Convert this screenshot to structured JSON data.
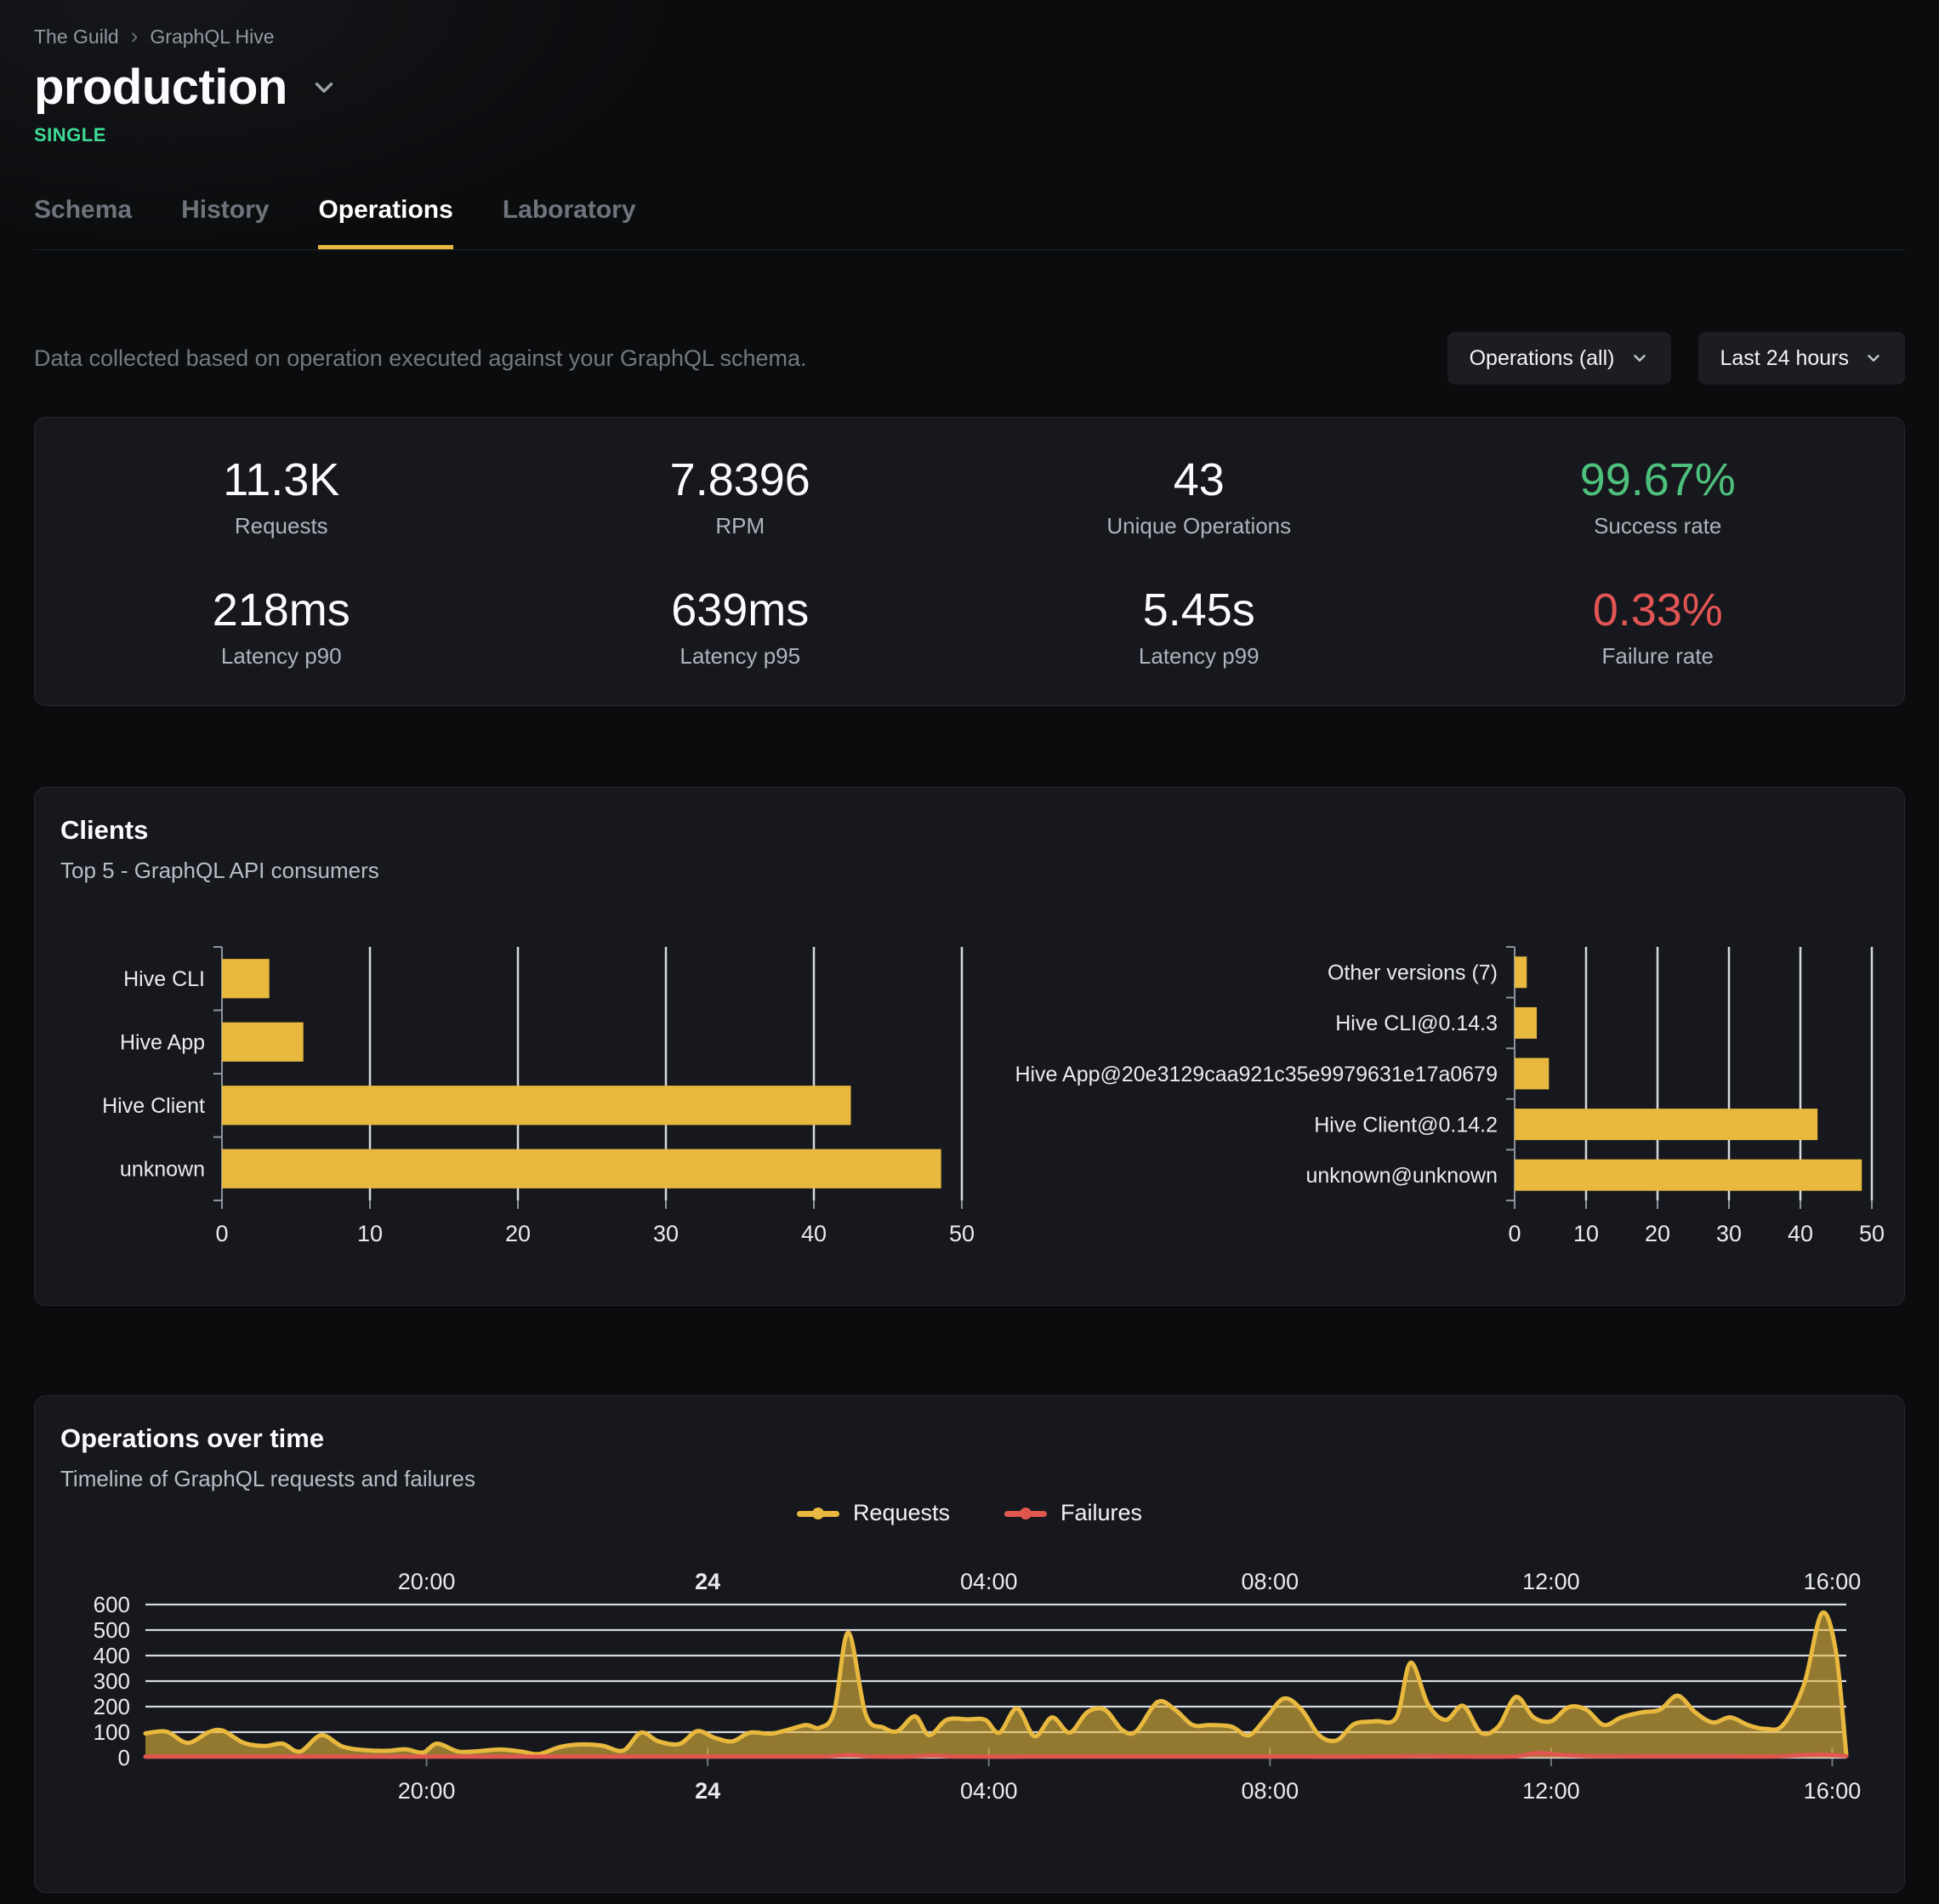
{
  "colors": {
    "accent_yellow": "#e8b93e",
    "success_green": "#4fc07c",
    "failure_red": "#e25555",
    "badge_green": "#3ddc97",
    "series_requests": "#e8b93e",
    "series_failures": "#e0574f"
  },
  "header": {
    "breadcrumb": {
      "items": [
        "The Guild",
        "GraphQL Hive"
      ],
      "separator": "›"
    },
    "title": "production",
    "badge": "SINGLE",
    "tabs": [
      {
        "label": "Schema"
      },
      {
        "label": "History"
      },
      {
        "label": "Operations"
      },
      {
        "label": "Laboratory"
      }
    ],
    "active_tab": "Operations"
  },
  "toolbar": {
    "description": "Data collected based on operation executed against your GraphQL schema.",
    "operations_filter": "Operations (all)",
    "period_filter": "Last 24 hours"
  },
  "stats": {
    "items": [
      {
        "value": "11.3K",
        "label": "Requests"
      },
      {
        "value": "7.8396",
        "label": "RPM"
      },
      {
        "value": "43",
        "label": "Unique Operations"
      },
      {
        "value": "99.67%",
        "label": "Success rate"
      },
      {
        "value": "218ms",
        "label": "Latency p90"
      },
      {
        "value": "639ms",
        "label": "Latency p95"
      },
      {
        "value": "5.45s",
        "label": "Latency p99"
      },
      {
        "value": "0.33%",
        "label": "Failure rate"
      }
    ]
  },
  "clients": {
    "title": "Clients",
    "subtitle": "Top 5 - GraphQL API consumers"
  },
  "operations_over_time": {
    "title": "Operations over time",
    "subtitle": "Timeline of GraphQL requests and failures"
  },
  "chart_data": [
    {
      "type": "bar",
      "orientation": "horizontal",
      "categories": [
        "Hive CLI",
        "Hive App",
        "Hive Client",
        "unknown"
      ],
      "values": [
        3.2,
        5.5,
        42.5,
        48.6
      ],
      "xlim": [
        0,
        50
      ],
      "xticks": [
        0,
        10,
        20,
        30,
        40,
        50
      ],
      "grid": true
    },
    {
      "type": "bar",
      "orientation": "horizontal",
      "categories": [
        "Other versions (7)",
        "Hive CLI@0.14.3",
        "Hive App@20e3129caa921c35e9979631e17a0679",
        "Hive Client@0.14.2",
        "unknown@unknown"
      ],
      "values": [
        1.7,
        3.1,
        4.8,
        42.4,
        48.6
      ],
      "xlim": [
        0,
        50
      ],
      "xticks": [
        0,
        10,
        20,
        30,
        40,
        50
      ],
      "grid": true
    },
    {
      "type": "area",
      "title": "Operations over time",
      "x_start_label": "16:00",
      "xmax": 24.2,
      "ylim": [
        0,
        600
      ],
      "yticks": [
        0,
        100,
        200,
        300,
        400,
        500,
        600
      ],
      "xticks": [
        {
          "pos": 4,
          "label": "20:00"
        },
        {
          "pos": 8,
          "label": "24",
          "bold": true
        },
        {
          "pos": 12,
          "label": "04:00"
        },
        {
          "pos": 16,
          "label": "08:00"
        },
        {
          "pos": 20,
          "label": "12:00"
        },
        {
          "pos": 24,
          "label": "16:00"
        }
      ],
      "grid": true,
      "legend_position": "top-center",
      "series": [
        {
          "name": "Requests",
          "color": "#e8b93e",
          "points": [
            [
              0,
              95
            ],
            [
              0.3,
              102
            ],
            [
              0.6,
              58
            ],
            [
              0.9,
              100
            ],
            [
              1.1,
              106
            ],
            [
              1.4,
              58
            ],
            [
              1.7,
              46
            ],
            [
              1.95,
              55
            ],
            [
              2.2,
              24
            ],
            [
              2.5,
              88
            ],
            [
              2.8,
              44
            ],
            [
              3.1,
              30
            ],
            [
              3.45,
              27
            ],
            [
              3.7,
              33
            ],
            [
              3.95,
              20
            ],
            [
              4.15,
              55
            ],
            [
              4.45,
              24
            ],
            [
              4.75,
              26
            ],
            [
              5.05,
              32
            ],
            [
              5.35,
              24
            ],
            [
              5.6,
              14
            ],
            [
              5.9,
              42
            ],
            [
              6.2,
              52
            ],
            [
              6.5,
              47
            ],
            [
              6.8,
              28
            ],
            [
              7.05,
              98
            ],
            [
              7.3,
              64
            ],
            [
              7.6,
              54
            ],
            [
              7.85,
              104
            ],
            [
              8.1,
              78
            ],
            [
              8.35,
              64
            ],
            [
              8.6,
              98
            ],
            [
              8.9,
              94
            ],
            [
              9.15,
              110
            ],
            [
              9.4,
              128
            ],
            [
              9.6,
              118
            ],
            [
              9.8,
              182
            ],
            [
              10,
              490
            ],
            [
              10.25,
              168
            ],
            [
              10.5,
              118
            ],
            [
              10.7,
              104
            ],
            [
              10.95,
              162
            ],
            [
              11.15,
              88
            ],
            [
              11.4,
              148
            ],
            [
              11.7,
              150
            ],
            [
              11.95,
              148
            ],
            [
              12.15,
              98
            ],
            [
              12.4,
              193
            ],
            [
              12.65,
              84
            ],
            [
              12.9,
              158
            ],
            [
              13.15,
              98
            ],
            [
              13.4,
              178
            ],
            [
              13.65,
              188
            ],
            [
              13.9,
              108
            ],
            [
              14.1,
              104
            ],
            [
              14.4,
              218
            ],
            [
              14.65,
              188
            ],
            [
              14.9,
              128
            ],
            [
              15.15,
              128
            ],
            [
              15.45,
              122
            ],
            [
              15.7,
              88
            ],
            [
              15.95,
              158
            ],
            [
              16.2,
              232
            ],
            [
              16.45,
              188
            ],
            [
              16.7,
              88
            ],
            [
              16.95,
              68
            ],
            [
              17.2,
              132
            ],
            [
              17.5,
              143
            ],
            [
              17.8,
              158
            ],
            [
              18,
              372
            ],
            [
              18.25,
              208
            ],
            [
              18.5,
              148
            ],
            [
              18.75,
              203
            ],
            [
              19,
              98
            ],
            [
              19.25,
              122
            ],
            [
              19.5,
              238
            ],
            [
              19.75,
              158
            ],
            [
              20,
              143
            ],
            [
              20.25,
              198
            ],
            [
              20.5,
              188
            ],
            [
              20.75,
              128
            ],
            [
              21,
              158
            ],
            [
              21.3,
              178
            ],
            [
              21.55,
              188
            ],
            [
              21.8,
              243
            ],
            [
              22.05,
              178
            ],
            [
              22.3,
              138
            ],
            [
              22.55,
              158
            ],
            [
              22.8,
              128
            ],
            [
              23.05,
              113
            ],
            [
              23.3,
              128
            ],
            [
              23.6,
              288
            ],
            [
              23.85,
              565
            ],
            [
              24.05,
              420
            ],
            [
              24.2,
              12
            ]
          ]
        },
        {
          "name": "Failures",
          "color": "#e0574f",
          "points": [
            [
              0,
              4
            ],
            [
              1,
              4
            ],
            [
              2,
              4
            ],
            [
              3,
              4
            ],
            [
              4,
              4
            ],
            [
              5,
              4
            ],
            [
              6,
              4
            ],
            [
              7,
              4
            ],
            [
              8,
              4
            ],
            [
              9,
              4
            ],
            [
              9.7,
              5
            ],
            [
              10,
              10
            ],
            [
              10.3,
              5
            ],
            [
              10.8,
              4
            ],
            [
              11.2,
              8
            ],
            [
              11.6,
              4
            ],
            [
              12.5,
              4
            ],
            [
              13.5,
              4
            ],
            [
              14.5,
              4
            ],
            [
              15.5,
              4
            ],
            [
              16.5,
              4
            ],
            [
              17.5,
              4
            ],
            [
              18.2,
              6
            ],
            [
              18.8,
              4
            ],
            [
              19.5,
              5
            ],
            [
              19.8,
              18
            ],
            [
              20.2,
              10
            ],
            [
              20.6,
              6
            ],
            [
              21.5,
              5
            ],
            [
              22.5,
              5
            ],
            [
              23.2,
              5
            ],
            [
              23.8,
              12
            ],
            [
              24.2,
              6
            ]
          ]
        }
      ]
    }
  ]
}
